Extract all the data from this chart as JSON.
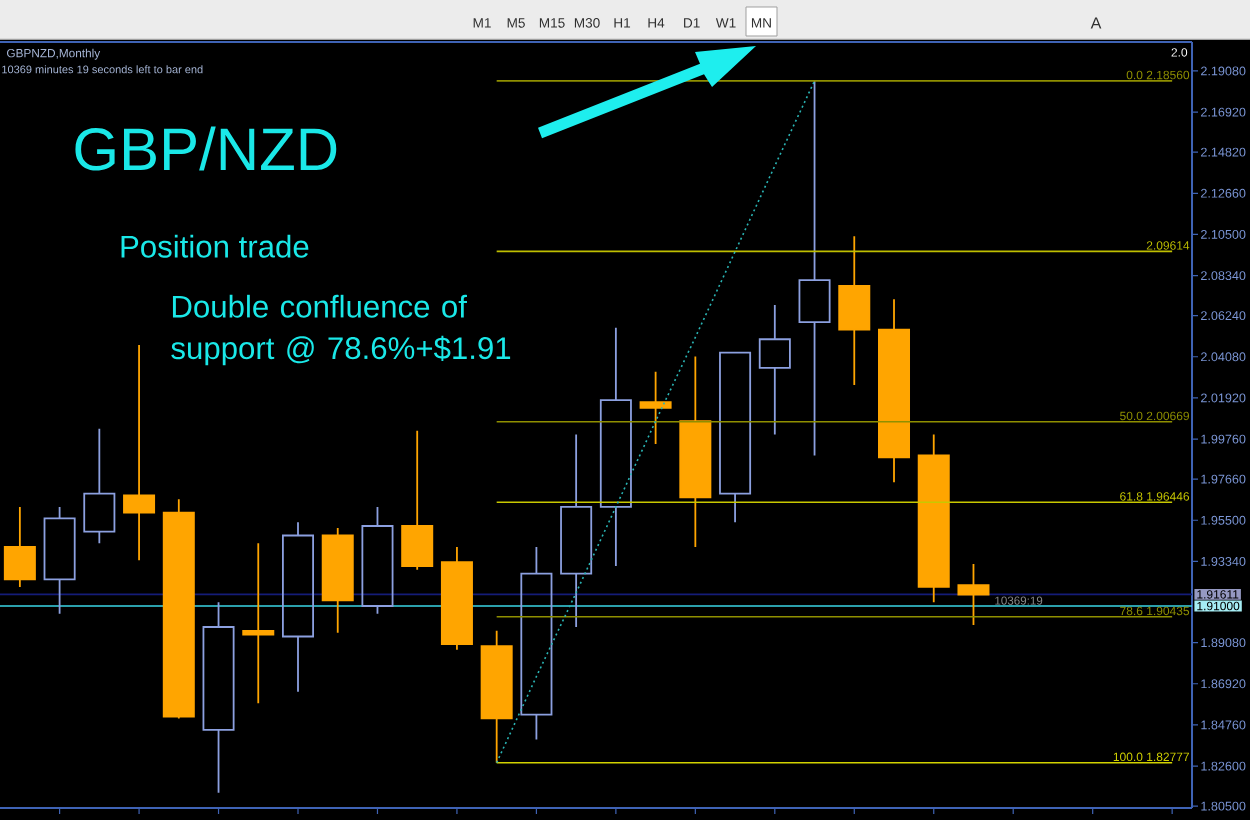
{
  "chart_data": {
    "type": "candlestick",
    "title": "GBP/NZD",
    "subtitle": "Position trade",
    "annotations": [
      "GBPNZD,Monthly",
      "10369 minutes 19 seconds left to bar end",
      "2.0",
      "Double confluence of support @ 78.6%+$1.91",
      "10369:19",
      "M1",
      "M5",
      "M15",
      "M30",
      "H1",
      "H4",
      "D1",
      "W1",
      "MN",
      "A"
    ],
    "categories": [
      null,
      null,
      null,
      null,
      null,
      null,
      null,
      null,
      null,
      null,
      null,
      null,
      null,
      null,
      null,
      null,
      null,
      null,
      null,
      null,
      null,
      null,
      null,
      null,
      null,
      null,
      null,
      null,
      null,
      null
    ],
    "ohlc": [
      [
        1.941,
        1.962,
        1.92,
        1.924
      ],
      [
        1.924,
        1.962,
        1.906,
        1.956
      ],
      [
        1.949,
        2.003,
        1.943,
        1.969
      ],
      [
        1.968,
        2.047,
        1.934,
        1.959
      ],
      [
        1.959,
        1.966,
        1.851,
        1.852
      ],
      [
        1.845,
        1.912,
        1.812,
        1.899
      ],
      [
        1.897,
        1.943,
        1.859,
        1.895
      ],
      [
        1.894,
        1.954,
        1.865,
        1.947
      ],
      [
        1.947,
        1.951,
        1.896,
        1.913
      ],
      [
        1.91,
        1.962,
        1.906,
        1.952
      ],
      [
        1.952,
        2.002,
        1.929,
        1.931
      ],
      [
        1.933,
        1.941,
        1.887,
        1.89
      ],
      [
        1.889,
        1.897,
        1.82777,
        1.851
      ],
      [
        1.853,
        1.941,
        1.84,
        1.927
      ],
      [
        1.927,
        2.0,
        1.899,
        1.962
      ],
      [
        1.962,
        2.056,
        1.931,
        2.018
      ],
      [
        2.017,
        2.033,
        1.995,
        2.014
      ],
      [
        2.007,
        2.041,
        1.941,
        1.967
      ],
      [
        1.969,
        2.043,
        1.954,
        2.043
      ],
      [
        2.035,
        2.068,
        2.0,
        2.05
      ],
      [
        2.059,
        2.1856,
        1.989,
        2.081
      ],
      [
        2.078,
        2.104,
        2.026,
        2.055
      ],
      [
        2.055,
        2.071,
        1.975,
        1.988
      ],
      [
        1.989,
        2.0,
        1.912,
        1.92
      ],
      [
        1.921,
        1.932,
        1.9,
        1.916
      ],
      null,
      null,
      null,
      null,
      null
    ],
    "colors": [
      "#ffa500",
      "#8ca0e0",
      "#8ca0e0",
      "#ffa500",
      "#ffa500",
      "#8ca0e0",
      "#ffa500",
      "#8ca0e0",
      "#ffa500",
      "#8ca0e0",
      "#ffa500",
      "#ffa500",
      "#ffa500",
      "#8ca0e0",
      "#8ca0e0",
      "#8ca0e0",
      "#ffa500",
      "#ffa500",
      "#8ca0e0",
      "#8ca0e0",
      "#8ca0e0",
      "#ffa500",
      "#ffa500",
      "#ffa500",
      "#ffa500",
      null,
      null,
      null,
      null,
      null
    ],
    "series": [
      {
        "name": "0.0 2.18560",
        "type": "line",
        "color": "#8f8f00",
        "values": [
          null,
          null,
          null,
          null,
          null,
          null,
          null,
          null,
          null,
          null,
          null,
          null,
          2.1856,
          2.1856,
          2.1856,
          2.1856,
          2.1856,
          2.1856,
          2.1856,
          2.1856,
          2.1856,
          2.1856,
          2.1856,
          2.1856,
          2.1856,
          2.1856,
          2.1856,
          2.1856,
          2.1856,
          2.1856
        ]
      },
      {
        "name": "2.09614",
        "type": "line",
        "color": "#bebe00",
        "values": [
          null,
          null,
          null,
          null,
          null,
          null,
          null,
          null,
          null,
          null,
          null,
          null,
          2.09614,
          2.09614,
          2.09614,
          2.09614,
          2.09614,
          2.09614,
          2.09614,
          2.09614,
          2.09614,
          2.09614,
          2.09614,
          2.09614,
          2.09614,
          2.09614,
          2.09614,
          2.09614,
          2.09614,
          2.09614
        ]
      },
      {
        "name": "50.0 2.00669",
        "type": "line",
        "color": "#8f8f00",
        "values": [
          null,
          null,
          null,
          null,
          null,
          null,
          null,
          null,
          null,
          null,
          null,
          null,
          2.00669,
          2.00669,
          2.00669,
          2.00669,
          2.00669,
          2.00669,
          2.00669,
          2.00669,
          2.00669,
          2.00669,
          2.00669,
          2.00669,
          2.00669,
          2.00669,
          2.00669,
          2.00669,
          2.00669,
          2.00669
        ]
      },
      {
        "name": "61.8 1.96446",
        "type": "line",
        "color": "#c8c800",
        "values": [
          null,
          null,
          null,
          null,
          null,
          null,
          null,
          null,
          null,
          null,
          null,
          null,
          1.96446,
          1.96446,
          1.96446,
          1.96446,
          1.96446,
          1.96446,
          1.96446,
          1.96446,
          1.96446,
          1.96446,
          1.96446,
          1.96446,
          1.96446,
          1.96446,
          1.96446,
          1.96446,
          1.96446,
          1.96446
        ]
      },
      {
        "name": "78.6 1.90435",
        "type": "line",
        "color": "#8f8f00",
        "values": [
          null,
          null,
          null,
          null,
          null,
          null,
          null,
          null,
          null,
          null,
          null,
          null,
          1.90435,
          1.90435,
          1.90435,
          1.90435,
          1.90435,
          1.90435,
          1.90435,
          1.90435,
          1.90435,
          1.90435,
          1.90435,
          1.90435,
          1.90435,
          1.90435,
          1.90435,
          1.90435,
          1.90435,
          1.90435
        ]
      },
      {
        "name": "100.0 1.82777",
        "type": "line",
        "color": "#d2d200",
        "values": [
          null,
          null,
          null,
          null,
          null,
          null,
          null,
          null,
          null,
          null,
          null,
          null,
          1.82777,
          1.82777,
          1.82777,
          1.82777,
          1.82777,
          1.82777,
          1.82777,
          1.82777,
          1.82777,
          1.82777,
          1.82777,
          1.82777,
          1.82777,
          1.82777,
          1.82777,
          1.82777,
          1.82777,
          1.82777
        ]
      },
      {
        "type": "line",
        "color": "#2ab4b4",
        "line_style": "dotted",
        "values": [
          null,
          null,
          null,
          null,
          null,
          null,
          null,
          null,
          null,
          null,
          null,
          null,
          1.82777,
          1.873,
          1.917,
          1.962,
          2.007,
          2.051,
          2.096,
          2.141,
          2.1856,
          null,
          null,
          null,
          null,
          null,
          null,
          null,
          null,
          null
        ]
      }
    ],
    "ref_lines": [
      {
        "axis": "y",
        "value": 1.91611,
        "label": "1.91611",
        "color": "#141c78"
      },
      {
        "axis": "y",
        "value": 1.91,
        "label": "1.91000",
        "color": "#3ad6e6"
      }
    ],
    "ylim": [
      1.804,
      2.206
    ],
    "yticks": [
      {
        "value": 1.805,
        "label": "1.80500"
      },
      {
        "value": 1.826,
        "label": "1.82600"
      },
      {
        "value": 1.8476,
        "label": "1.84760"
      },
      {
        "value": 1.8692,
        "label": "1.86920"
      },
      {
        "value": 1.8908,
        "label": "1.89080"
      },
      {
        "value": 1.9334,
        "label": "1.93340"
      },
      {
        "value": 1.955,
        "label": "1.95500"
      },
      {
        "value": 1.9766,
        "label": "1.97660"
      },
      {
        "value": 1.9976,
        "label": "1.99760"
      },
      {
        "value": 2.0192,
        "label": "2.01920"
      },
      {
        "value": 2.0408,
        "label": "2.04080"
      },
      {
        "value": 2.0624,
        "label": "2.06240"
      },
      {
        "value": 2.0834,
        "label": "2.08340"
      },
      {
        "value": 2.105,
        "label": "2.10500"
      },
      {
        "value": 2.1266,
        "label": "2.12660"
      },
      {
        "value": 2.1482,
        "label": "2.14820"
      },
      {
        "value": 2.1692,
        "label": "2.16920"
      },
      {
        "value": 2.1908,
        "label": "2.19080"
      }
    ]
  }
}
